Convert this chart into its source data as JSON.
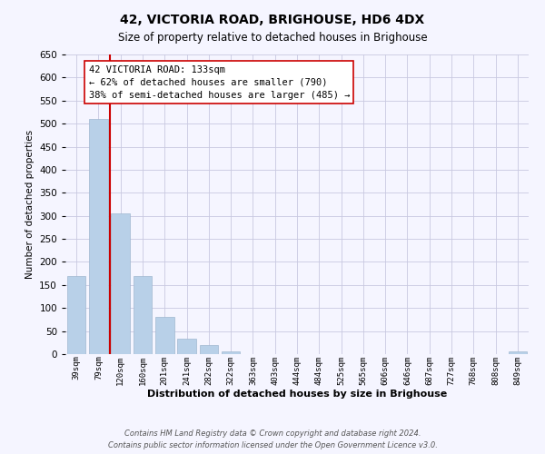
{
  "title": "42, VICTORIA ROAD, BRIGHOUSE, HD6 4DX",
  "subtitle": "Size of property relative to detached houses in Brighouse",
  "xlabel": "Distribution of detached houses by size in Brighouse",
  "ylabel": "Number of detached properties",
  "bar_labels": [
    "39sqm",
    "79sqm",
    "120sqm",
    "160sqm",
    "201sqm",
    "241sqm",
    "282sqm",
    "322sqm",
    "363sqm",
    "403sqm",
    "444sqm",
    "484sqm",
    "525sqm",
    "565sqm",
    "606sqm",
    "646sqm",
    "687sqm",
    "727sqm",
    "768sqm",
    "808sqm",
    "849sqm"
  ],
  "bar_values": [
    170,
    510,
    305,
    170,
    80,
    33,
    20,
    5,
    0,
    0,
    0,
    0,
    0,
    0,
    0,
    0,
    0,
    0,
    0,
    0,
    5
  ],
  "bar_color": "#b8d0e8",
  "vline_color": "#cc0000",
  "ylim": [
    0,
    650
  ],
  "yticks": [
    0,
    50,
    100,
    150,
    200,
    250,
    300,
    350,
    400,
    450,
    500,
    550,
    600,
    650
  ],
  "annotation_title": "42 VICTORIA ROAD: 133sqm",
  "annotation_line1": "← 62% of detached houses are smaller (790)",
  "annotation_line2": "38% of semi-detached houses are larger (485) →",
  "footer1": "Contains HM Land Registry data © Crown copyright and database right 2024.",
  "footer2": "Contains public sector information licensed under the Open Government Licence v3.0.",
  "bg_color": "#f5f5ff"
}
